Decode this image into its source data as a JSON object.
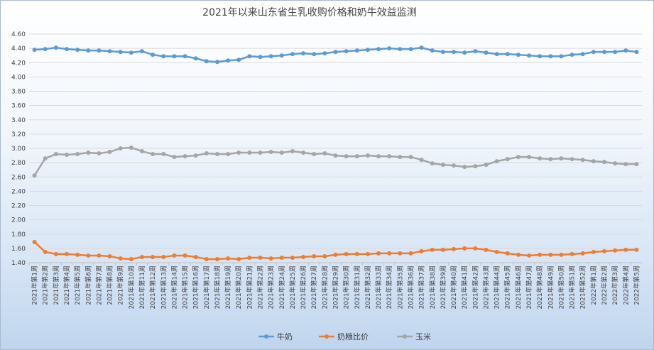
{
  "chart_data": {
    "type": "line",
    "title": "2021年以来山东省生乳收购价格和奶牛效益监测",
    "xlabel": "",
    "ylabel": "",
    "ylim": [
      1.4,
      4.6
    ],
    "yticks": [
      "1.40",
      "1.60",
      "1.80",
      "2.00",
      "2.20",
      "2.40",
      "2.60",
      "2.80",
      "3.00",
      "3.20",
      "3.40",
      "3.60",
      "3.80",
      "4.00",
      "4.20",
      "4.40",
      "4.60"
    ],
    "grid": true,
    "legend_position": "bottom",
    "categories": [
      "2021年第1周",
      "2021年第2周",
      "2021年第3周",
      "2021年第4周",
      "2021年第5周",
      "2021年第6周",
      "2021年第7周",
      "2021年第8周",
      "2021年第9周",
      "2021年第10周",
      "2021年第11周",
      "2021年第12周",
      "2021年第13周",
      "2021年第14周",
      "2021年第15周",
      "2021年第16周",
      "2021年第17周",
      "2021年第18周",
      "2021年第19周",
      "2021年第20周",
      "2021年第21周",
      "2021年第22周",
      "2021年第23周",
      "2021年第24周",
      "2021年第25周",
      "2021年第26周",
      "2021年第27周",
      "2021年第28周",
      "2021年第29周",
      "2021年第30周",
      "2021年第31周",
      "2021年第32周",
      "2021年第33周",
      "2021年第34周",
      "2021年第35周",
      "2021年第36周",
      "2021年第37周",
      "2021年第38周",
      "2021年第39周",
      "2021年第40周",
      "2021年第41周",
      "2021年第42周",
      "2021年第43周",
      "2021年第44周",
      "2021年第45周",
      "2021年第46周",
      "2021年第47周",
      "2021年第48周",
      "2021年第49周",
      "2021年第50周",
      "2021年第51周",
      "2021年第52周",
      "2022年第1周",
      "2022年第2周",
      "2022年第3周",
      "2022年第4周",
      "2022年第5周"
    ],
    "series": [
      {
        "name": "牛奶",
        "color": "#5b9bd5",
        "values": [
          4.38,
          4.39,
          4.41,
          4.39,
          4.38,
          4.37,
          4.37,
          4.36,
          4.35,
          4.34,
          4.36,
          4.31,
          4.29,
          4.29,
          4.29,
          4.26,
          4.22,
          4.21,
          4.23,
          4.24,
          4.29,
          4.28,
          4.29,
          4.3,
          4.32,
          4.33,
          4.32,
          4.33,
          4.35,
          4.36,
          4.37,
          4.38,
          4.39,
          4.4,
          4.39,
          4.39,
          4.41,
          4.37,
          4.35,
          4.35,
          4.34,
          4.36,
          4.34,
          4.32,
          4.32,
          4.31,
          4.3,
          4.29,
          4.29,
          4.29,
          4.31,
          4.32,
          4.35,
          4.35,
          4.35,
          4.37,
          4.35
        ]
      },
      {
        "name": "奶粮比价",
        "color": "#ed7d31",
        "values": [
          1.69,
          1.55,
          1.52,
          1.52,
          1.51,
          1.5,
          1.5,
          1.49,
          1.46,
          1.45,
          1.48,
          1.48,
          1.48,
          1.5,
          1.5,
          1.48,
          1.45,
          1.45,
          1.46,
          1.45,
          1.47,
          1.47,
          1.46,
          1.47,
          1.47,
          1.48,
          1.49,
          1.49,
          1.51,
          1.52,
          1.52,
          1.52,
          1.53,
          1.53,
          1.53,
          1.53,
          1.56,
          1.58,
          1.58,
          1.59,
          1.6,
          1.6,
          1.58,
          1.55,
          1.53,
          1.51,
          1.5,
          1.51,
          1.51,
          1.51,
          1.52,
          1.53,
          1.55,
          1.56,
          1.57,
          1.58,
          1.58
        ]
      },
      {
        "name": "玉米",
        "color": "#a5a5a5",
        "values": [
          2.62,
          2.86,
          2.92,
          2.91,
          2.92,
          2.94,
          2.93,
          2.95,
          3.0,
          3.01,
          2.96,
          2.92,
          2.92,
          2.88,
          2.89,
          2.9,
          2.93,
          2.92,
          2.92,
          2.94,
          2.94,
          2.94,
          2.95,
          2.94,
          2.96,
          2.94,
          2.92,
          2.93,
          2.9,
          2.89,
          2.89,
          2.9,
          2.89,
          2.89,
          2.88,
          2.88,
          2.84,
          2.79,
          2.77,
          2.76,
          2.74,
          2.75,
          2.77,
          2.82,
          2.85,
          2.88,
          2.88,
          2.86,
          2.85,
          2.86,
          2.85,
          2.84,
          2.82,
          2.81,
          2.79,
          2.78,
          2.78
        ]
      }
    ]
  }
}
